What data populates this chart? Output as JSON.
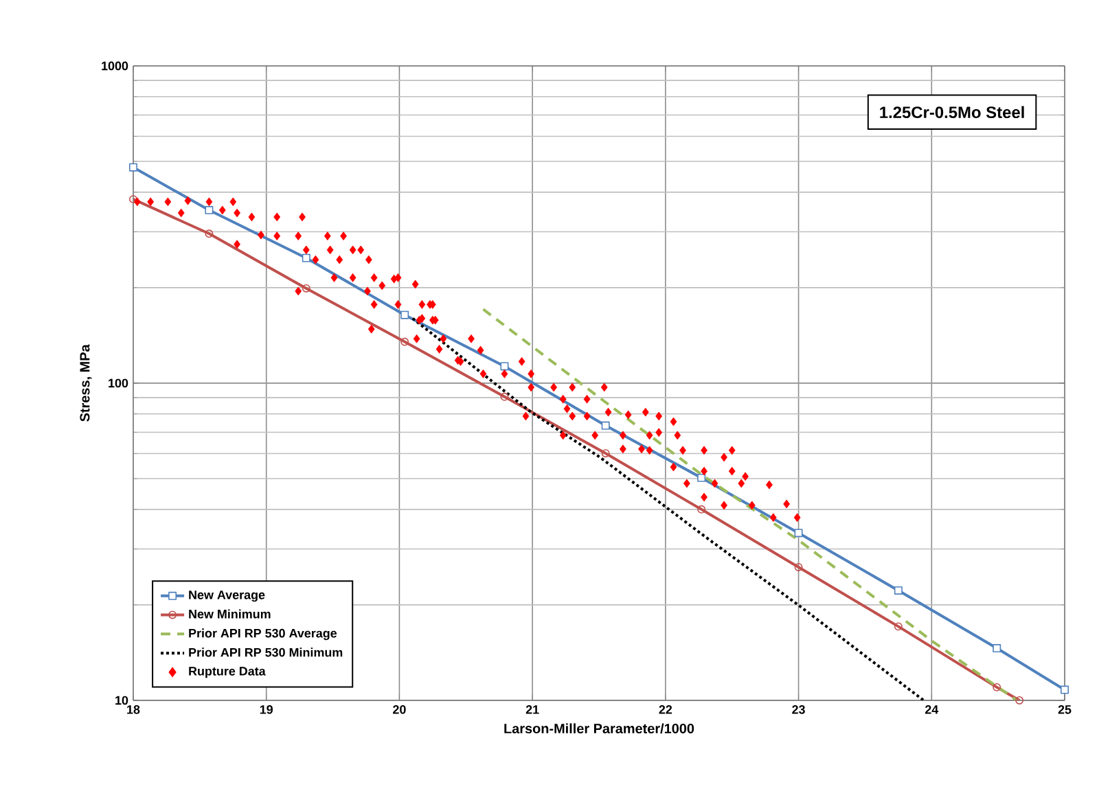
{
  "chart_data": {
    "type": "line",
    "xlabel": "Larson-Miller Parameter/1000",
    "ylabel": "Stress, MPa",
    "annotations": [
      "1.25Cr-0.5Mo Steel"
    ],
    "xlim": [
      18,
      25
    ],
    "xticks": [
      18,
      19,
      20,
      21,
      22,
      23,
      24,
      25
    ],
    "ylim": [
      10,
      1000
    ],
    "yticks": [
      10,
      100,
      1000
    ],
    "log": "y",
    "grid": true,
    "legend": "bottom left",
    "series": [
      {
        "name": "New Average",
        "color": "#4f81bd",
        "marker": "square",
        "line_style": "solid",
        "x": [
          18,
          18.57,
          19.3,
          20.04,
          20.79,
          21.55,
          22.27,
          23.0,
          23.75,
          24.49,
          25
        ],
        "values": [
          479,
          351,
          248,
          164,
          113,
          73.5,
          50.3,
          33.7,
          22.2,
          14.6,
          10.8
        ]
      },
      {
        "name": "New Minimum",
        "color": "#c0504d",
        "marker": "circle",
        "line_style": "solid",
        "x": [
          18,
          18.57,
          19.3,
          20.04,
          20.79,
          21.55,
          22.27,
          23.0,
          23.75,
          24.49,
          24.66
        ],
        "values": [
          380,
          296,
          199,
          135,
          90.6,
          60.1,
          40.0,
          26.3,
          17.1,
          11.0,
          10
        ]
      },
      {
        "name": "Prior API RP 530 Average",
        "color": "#9bbb59",
        "marker": "none",
        "line_style": "dashed",
        "x": [
          20.63,
          21.51,
          22.29,
          23.0,
          24.02,
          24.64
        ],
        "values": [
          171,
          89.6,
          50.8,
          32,
          15.2,
          10
        ]
      },
      {
        "name": "Prior API RP 530 Minimum",
        "color": "#000000",
        "marker": "none",
        "line_style": "dotted",
        "x": [
          20.1,
          20.99,
          21.51,
          22.29,
          22.99,
          23.94
        ],
        "values": [
          160,
          81,
          58.3,
          33.0,
          20.1,
          10
        ]
      },
      {
        "name": "Rupture Data",
        "type": "scatter",
        "color": "#ff0000",
        "marker": "diamond",
        "x": [
          18.03,
          18.13,
          18.26,
          18.41,
          18.36,
          18.57,
          18.67,
          18.75,
          18.78,
          18.89,
          19.08,
          19.27,
          18.96,
          19.08,
          19.24,
          19.46,
          19.58,
          18.78,
          19.3,
          19.48,
          19.65,
          19.71,
          19.37,
          19.55,
          19.77,
          19.51,
          19.65,
          19.81,
          19.99,
          19.87,
          20.12,
          19.24,
          19.76,
          19.81,
          19.99,
          20.17,
          20.25,
          20.17,
          20.25,
          19.79,
          20.13,
          20.33,
          20.54,
          20.3,
          20.46,
          19.96,
          20.23,
          20.15,
          20.27,
          20.61,
          20.44,
          20.63,
          20.79,
          20.99,
          20.92,
          20.99,
          21.16,
          21.3,
          21.54,
          21.23,
          21.41,
          21.26,
          21.41,
          21.3,
          20.95,
          21.23,
          21.47,
          21.57,
          21.72,
          21.85,
          21.95,
          22.06,
          21.68,
          21.88,
          22.09,
          21.68,
          21.88,
          22.13,
          22.29,
          22.5,
          22.44,
          22.06,
          22.29,
          22.5,
          22.6,
          22.16,
          22.37,
          22.57,
          22.78,
          22.29,
          22.44,
          22.65,
          22.91,
          22.99,
          22.81,
          21.95,
          21.82
        ],
        "values": [
          373,
          373,
          373,
          376,
          344,
          373,
          351,
          373,
          344,
          334,
          334,
          334,
          293,
          291,
          291,
          291,
          291,
          274,
          263,
          263,
          263,
          263,
          245,
          245,
          245,
          215,
          215,
          215,
          215,
          203,
          205,
          195,
          195,
          177,
          177,
          177,
          177,
          160,
          158,
          148,
          138,
          138,
          138,
          128,
          117,
          213,
          177,
          158,
          158,
          127,
          118,
          107,
          107,
          107,
          117,
          97,
          97,
          97,
          97,
          89,
          89,
          83,
          78.7,
          78.7,
          78.7,
          68.5,
          68.5,
          81,
          79.5,
          81,
          78.7,
          75.6,
          68.5,
          68.5,
          68.5,
          62.0,
          61.4,
          61.4,
          61.4,
          61.4,
          58.4,
          54.4,
          52.8,
          52.8,
          50.8,
          48.3,
          48.3,
          48.3,
          47.8,
          43.7,
          41.2,
          41.2,
          41.6,
          37.7,
          37.7,
          69.9,
          62.0
        ]
      }
    ]
  }
}
